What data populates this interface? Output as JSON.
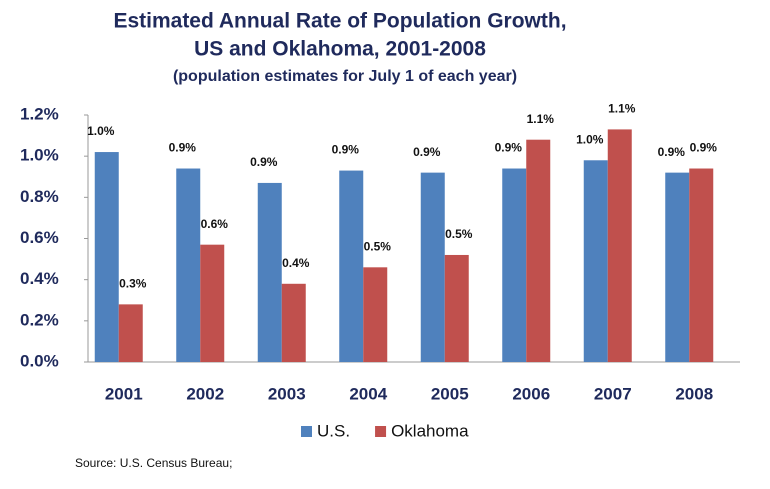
{
  "chart_data": {
    "type": "bar",
    "title": "Estimated Annual  Rate of Population Growth,",
    "subtitle": "US and Oklahoma, 2001-2008",
    "note": "(population estimates for July 1 of each year)",
    "source": "Source: U.S. Census Bureau;",
    "categories": [
      "2001",
      "2002",
      "2003",
      "2004",
      "2005",
      "2006",
      "2007",
      "2008"
    ],
    "series": [
      {
        "name": "U.S.",
        "color": "#4f81bd",
        "values": [
          1.02,
          0.94,
          0.87,
          0.93,
          0.92,
          0.94,
          0.98,
          0.92
        ],
        "value_labels": [
          "1.0%",
          "0.9%",
          "0.9%",
          "0.9%",
          "0.9%",
          "0.9%",
          "1.0%",
          "0.9%"
        ]
      },
      {
        "name": "Oklahoma",
        "color": "#c0504d",
        "values": [
          0.28,
          0.57,
          0.38,
          0.46,
          0.52,
          1.08,
          1.13,
          0.94
        ],
        "value_labels": [
          "0.3%",
          "0.6%",
          "0.4%",
          "0.5%",
          "0.5%",
          "1.1%",
          "1.1%",
          "0.9%"
        ]
      }
    ],
    "ylim": [
      0,
      1.2
    ],
    "yticks": [
      {
        "value": 0,
        "label": "0.0%"
      },
      {
        "value": 0.2,
        "label": "0.2%"
      },
      {
        "value": 0.4,
        "label": "0.4%"
      },
      {
        "value": 0.6,
        "label": "0.6%"
      },
      {
        "value": 0.8,
        "label": "0.8%"
      },
      {
        "value": 1.0,
        "label": "1.0%"
      },
      {
        "value": 1.2,
        "label": "1.2%"
      }
    ],
    "grid": false,
    "legend": "bottom"
  }
}
